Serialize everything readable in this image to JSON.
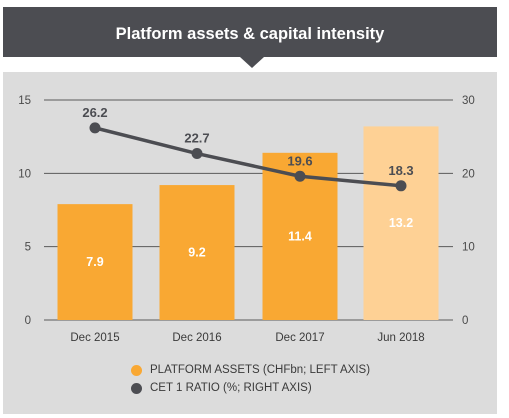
{
  "title": "Platform assets & capital intensity",
  "colors": {
    "title_bg": "#4c4d52",
    "panel_bg": "#dcdcdc",
    "bar": "#f9a833",
    "bar_highlight": "#fed195",
    "line": "#4c4d52"
  },
  "legend": {
    "assets": "PLATFORM ASSETS (CHFbn; LEFT AXIS)",
    "cet1": "CET 1 RATIO (%; RIGHT AXIS)"
  },
  "chart_data": {
    "type": "bar",
    "categories": [
      "Dec 2015",
      "Dec 2016",
      "Dec 2017",
      "Jun 2018"
    ],
    "series": [
      {
        "name": "PLATFORM ASSETS (CHFbn; LEFT AXIS)",
        "type": "bar",
        "axis": "left",
        "values": [
          7.9,
          9.2,
          11.4,
          13.2
        ],
        "labels": [
          "7.9",
          "9.2",
          "11.4",
          "13.2"
        ]
      },
      {
        "name": "CET 1 RATIO (%; RIGHT AXIS)",
        "type": "line",
        "axis": "right",
        "values": [
          26.2,
          22.7,
          19.6,
          18.3
        ],
        "labels": [
          "26.2",
          "22.7",
          "19.6",
          "18.3"
        ]
      }
    ],
    "left_axis": {
      "ylim": [
        0,
        15
      ],
      "ticks": [
        "0",
        "5",
        "10",
        "15"
      ]
    },
    "right_axis": {
      "ylim": [
        0,
        30
      ],
      "ticks": [
        "0",
        "10",
        "20",
        "30"
      ]
    },
    "highlighted_category": "Jun 2018",
    "grid": true,
    "legend_position": "bottom"
  }
}
